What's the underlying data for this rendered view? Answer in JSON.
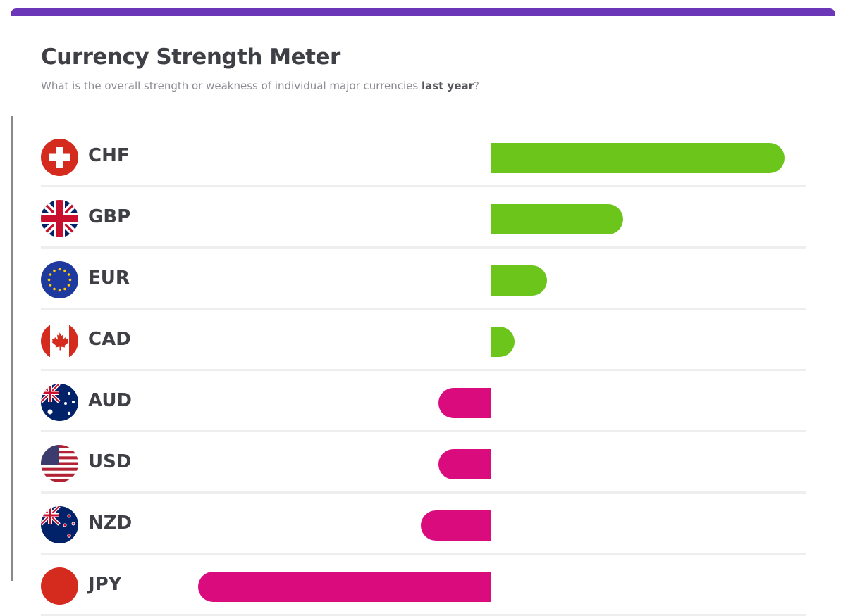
{
  "header": {
    "title": "Currency Strength Meter",
    "subtitle_pre": "What is the overall strength or weakness of individual major currencies ",
    "subtitle_bold": "last year",
    "subtitle_post": "?"
  },
  "colors": {
    "accent": "#6c36b9",
    "positive": "#6cc51a",
    "negative": "#da0b7d"
  },
  "chart_data": {
    "type": "bar",
    "orientation": "horizontal",
    "categories": [
      "CHF",
      "GBP",
      "EUR",
      "CAD",
      "AUD",
      "USD",
      "NZD",
      "JPY"
    ],
    "values": [
      100,
      45,
      19,
      8,
      -18,
      -18,
      -24,
      -100
    ],
    "flags": [
      "switzerland-flag-icon",
      "uk-flag-icon",
      "eu-flag-icon",
      "canada-flag-icon",
      "australia-flag-icon",
      "us-flag-icon",
      "new-zealand-flag-icon",
      "japan-flag-icon"
    ],
    "xlim": [
      -100,
      100
    ],
    "grid": false,
    "legend": "none"
  }
}
